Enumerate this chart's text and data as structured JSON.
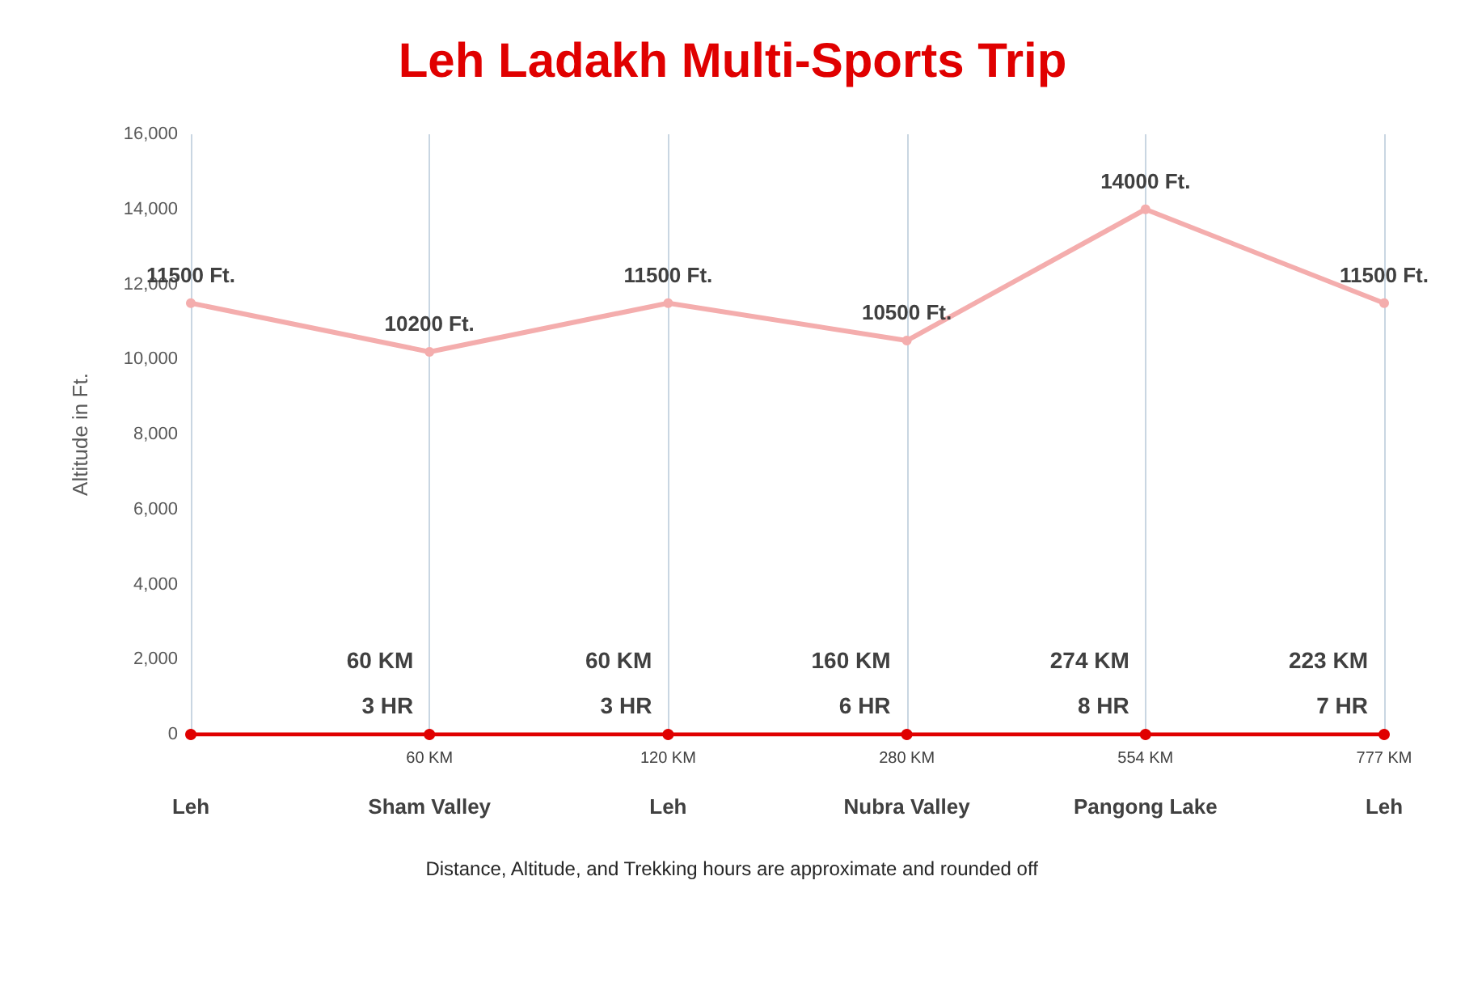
{
  "chart_data": {
    "type": "line",
    "title": "Leh Ladakh Multi-Sports Trip",
    "ylabel": "Altitude in Ft.",
    "categories": [
      "Leh",
      "Sham Valley",
      "Leh",
      "Nubra Valley",
      "Pangong Lake",
      "Leh"
    ],
    "series": [
      {
        "color": "#f4adad",
        "values": [
          11500,
          10200,
          11500,
          10500,
          14000,
          11500
        ],
        "value_labels": [
          "11500 Ft.",
          "10200 Ft.",
          "11500 Ft.",
          "10500 Ft.",
          "14000 Ft.",
          "11500 Ft."
        ]
      },
      {
        "color": "#e00000",
        "values": [
          0,
          0,
          0,
          0,
          0,
          0
        ]
      }
    ],
    "ylim": [
      0,
      16000
    ],
    "yticks": [
      {
        "value": 0,
        "label": "0"
      },
      {
        "value": 2000,
        "label": "2,000"
      },
      {
        "value": 4000,
        "label": "4,000"
      },
      {
        "value": 6000,
        "label": "6,000"
      },
      {
        "value": 8000,
        "label": "8,000"
      },
      {
        "value": 10000,
        "label": "10,000"
      },
      {
        "value": 12000,
        "label": "12,000"
      },
      {
        "value": 14000,
        "label": "14,000"
      },
      {
        "value": 16000,
        "label": "16,000"
      }
    ],
    "annotations": [
      "60 KM",
      "3 HR",
      "60 KM",
      "3 HR",
      "160 KM",
      "6 HR",
      "274 KM",
      "8 HR",
      "223 KM",
      "7 HR",
      "60 KM",
      "120 KM",
      "280 KM",
      "554 KM",
      "777 KM",
      "Distance, Altitude, and Trekking hours are approximate and rounded off"
    ],
    "grid": "x",
    "marker": "circle"
  }
}
